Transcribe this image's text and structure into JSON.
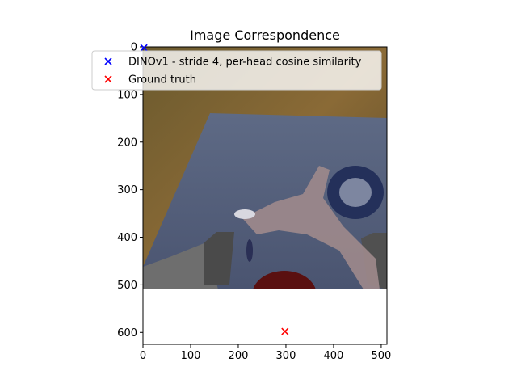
{
  "chart_data": {
    "type": "scatter",
    "title": "Image Correspondence",
    "xlabel": "",
    "ylabel": "",
    "xlim": [
      0,
      512
    ],
    "ylim": [
      625,
      0
    ],
    "image_extent": {
      "x": [
        0,
        512
      ],
      "y": [
        0,
        512
      ]
    },
    "x_ticks": [
      0,
      100,
      200,
      300,
      400,
      500
    ],
    "x_tick_labels": [
      "0",
      "100",
      "200",
      "300",
      "400",
      "500"
    ],
    "y_ticks": [
      0,
      100,
      200,
      300,
      400,
      500,
      600
    ],
    "y_tick_labels": [
      "0",
      "100",
      "200",
      "300",
      "400",
      "500",
      "600"
    ],
    "grid": false,
    "legend_placement": "upper-left",
    "series": [
      {
        "name": "DINOv1 - stride 4, per-head cosine similarity",
        "color": "#0000ff",
        "marker": "x",
        "points": [
          {
            "x": 2,
            "y": 2
          }
        ]
      },
      {
        "name": "Ground truth",
        "color": "#ff0000",
        "marker": "x",
        "points": [
          {
            "x": 298,
            "y": 598
          }
        ]
      }
    ]
  }
}
